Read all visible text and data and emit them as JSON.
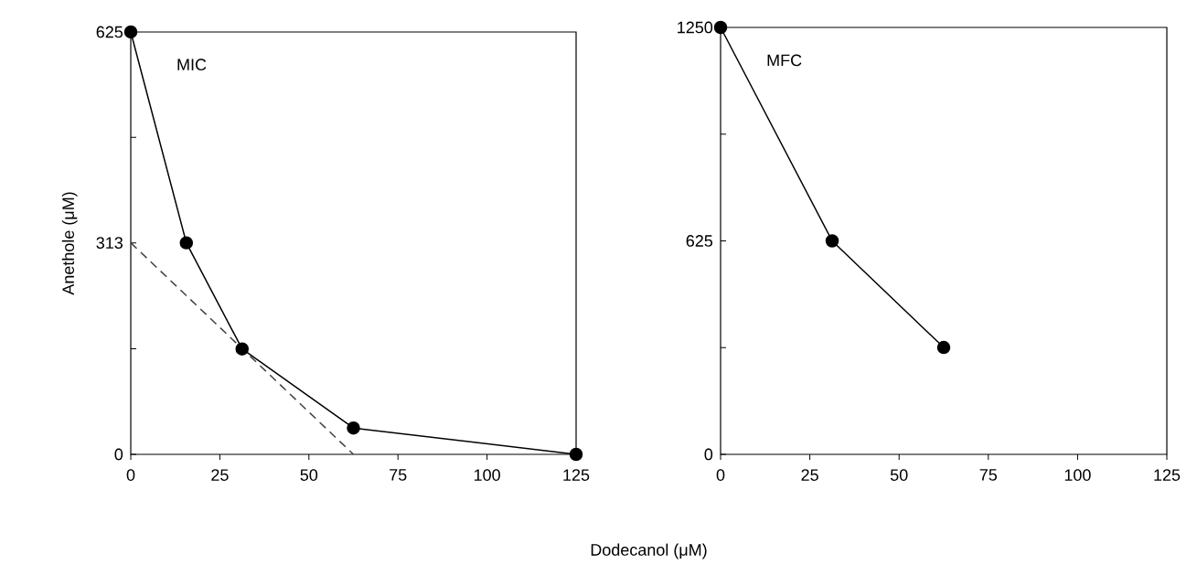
{
  "chart_data": [
    {
      "type": "line",
      "ylabel": "Anethole (μM)",
      "xlabel": "Dodecanol (μM)",
      "annotations": [
        "MIC"
      ],
      "xlim": [
        0,
        125
      ],
      "ylim": [
        0,
        625
      ],
      "xticks": [
        0,
        25,
        50,
        75,
        100,
        125
      ],
      "yticks": [
        0,
        {
          "value": 156.25,
          "label": null
        },
        313,
        {
          "value": 469,
          "label": null
        },
        625
      ],
      "series": [
        {
          "color": "#000000",
          "marker": "circle",
          "line_style": "solid",
          "x": [
            0,
            15.6,
            31.25,
            62.5,
            125
          ],
          "values": [
            625,
            313,
            156,
            39,
            0
          ]
        },
        {
          "color": "#404040",
          "marker": "none",
          "line_style": "dashed",
          "x": [
            0,
            62.5
          ],
          "values": [
            313,
            0
          ]
        }
      ]
    },
    {
      "type": "line",
      "annotations": [
        "MFC"
      ],
      "xlim": [
        0,
        125
      ],
      "ylim": [
        0,
        1250
      ],
      "xticks": [
        0,
        25,
        50,
        75,
        100,
        125
      ],
      "yticks": [
        0,
        {
          "value": 312.5,
          "label": null
        },
        625,
        {
          "value": 937.5,
          "label": null
        },
        1250
      ],
      "series": [
        {
          "color": "#000000",
          "marker": "circle",
          "line_style": "solid",
          "x": [
            0,
            31.25,
            62.5
          ],
          "values": [
            1250,
            625,
            313
          ]
        }
      ]
    }
  ]
}
